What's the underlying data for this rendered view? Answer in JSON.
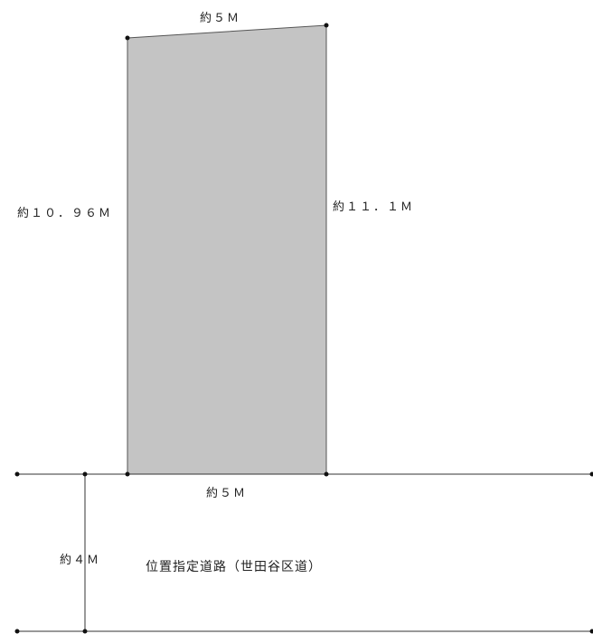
{
  "plot": {
    "fill_color": "#c4c4c4",
    "outline_color": "#555555",
    "top_length": "約５Ｍ",
    "bottom_length": "約５Ｍ",
    "left_length": "約１０．９６Ｍ",
    "right_length": "約１１．１Ｍ"
  },
  "road": {
    "name": "位置指定道路（世田谷区道）",
    "width": "約４Ｍ",
    "line_color": "#333333"
  }
}
